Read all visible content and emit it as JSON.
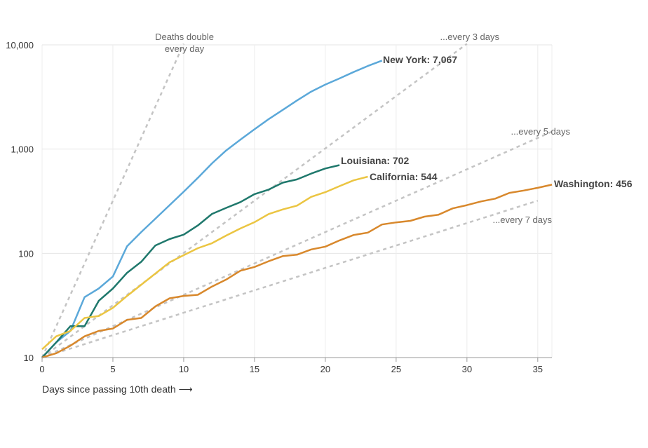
{
  "chart_data": {
    "type": "line",
    "title": "",
    "xlabel": "Days since passing 10th death ⟶",
    "ylabel": "",
    "xlim": [
      0,
      36
    ],
    "ylim": [
      10,
      10000
    ],
    "yscale": "log",
    "grid": true,
    "x_ticks": [
      0,
      5,
      10,
      15,
      20,
      25,
      30,
      35
    ],
    "y_ticks": [
      10,
      100,
      1000,
      10000
    ],
    "y_tick_labels": [
      "10",
      "100",
      "1,000",
      "10,000"
    ],
    "series": [
      {
        "name": "New York",
        "label": "New York: 7,067",
        "color": "#5ba8d9",
        "values": [
          10,
          14,
          18,
          38,
          46,
          60,
          117,
          160,
          215,
          290,
          390,
          530,
          730,
          970,
          1230,
          1550,
          1940,
          2380,
          2930,
          3560,
          4160,
          4760,
          5490,
          6270,
          7067
        ]
      },
      {
        "name": "Louisiana",
        "label": "Louisiana: 702",
        "color": "#1f786c",
        "values": [
          10,
          14,
          20,
          20,
          35,
          46,
          65,
          83,
          119,
          137,
          151,
          185,
          239,
          273,
          310,
          370,
          409,
          477,
          512,
          582,
          652,
          702
        ]
      },
      {
        "name": "California",
        "label": "California: 544",
        "color": "#ebc542",
        "values": [
          12,
          16,
          18,
          24,
          25,
          30,
          39,
          50,
          64,
          82,
          96,
          112,
          125,
          148,
          173,
          199,
          238,
          264,
          287,
          348,
          386,
          441,
          502,
          544
        ]
      },
      {
        "name": "Washington",
        "label": "Washington: 456",
        "color": "#d8882c",
        "values": [
          10,
          11,
          13,
          16,
          18,
          19,
          23,
          24,
          31,
          37,
          39,
          40,
          48,
          56,
          68,
          74,
          84,
          94,
          97,
          109,
          116,
          133,
          150,
          158,
          189,
          198,
          205,
          225,
          235,
          270,
          290,
          315,
          335,
          380,
          400,
          425,
          456
        ]
      }
    ],
    "reference_lines": [
      {
        "label_lines": [
          "Deaths double",
          "every day"
        ],
        "doubling_days": 1,
        "end_day": 10
      },
      {
        "label_lines": [
          "...every 3 days"
        ],
        "doubling_days": 3,
        "end_day": 30
      },
      {
        "label_lines": [
          "...every 5 days"
        ],
        "doubling_days": 5,
        "end_day": 36
      },
      {
        "label_lines": [
          "...every 7 days"
        ],
        "doubling_days": 7,
        "end_day": 35
      }
    ],
    "reference_color": "#c4c4c4"
  }
}
